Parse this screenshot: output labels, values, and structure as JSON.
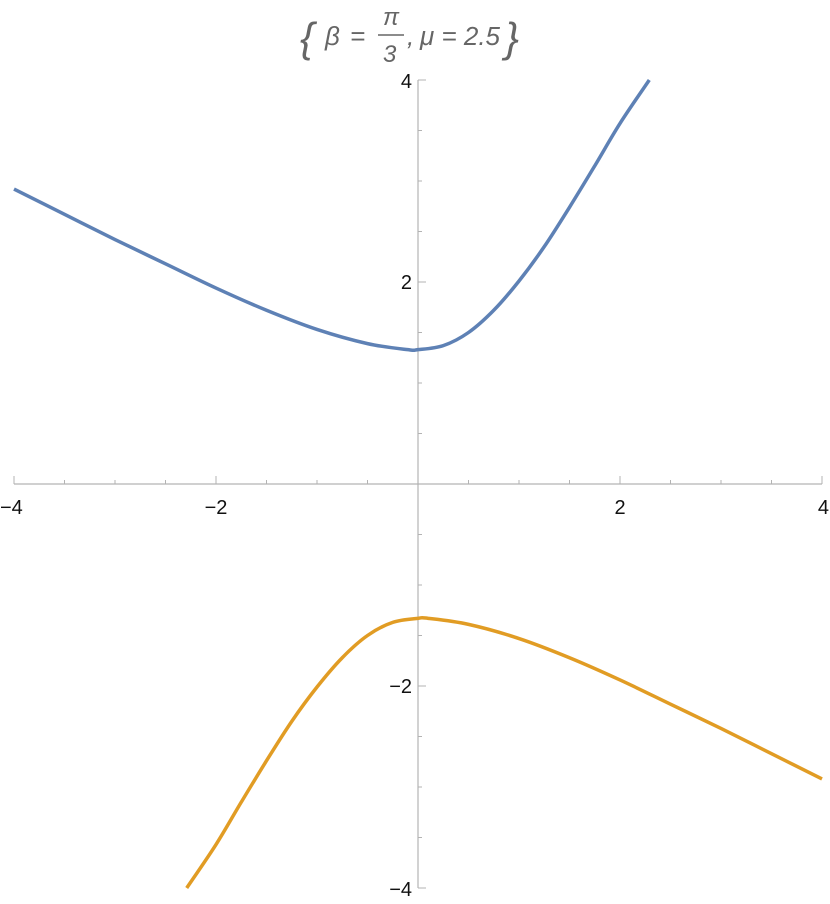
{
  "chart_data": {
    "type": "line",
    "title": {
      "open_brace": "{",
      "beta_symbol": "β",
      "equals": "=",
      "pi_symbol": "π",
      "denominator": "3",
      "separator": ",",
      "mu_label": "μ = 2.5",
      "close_brace": "}"
    },
    "xlabel": "",
    "ylabel": "",
    "xlim": [
      -4,
      4
    ],
    "ylim": [
      -4,
      4
    ],
    "x_ticks": [
      {
        "value": -4,
        "label": "−4"
      },
      {
        "value": -2,
        "label": "−2"
      },
      {
        "value": 2,
        "label": "2"
      },
      {
        "value": 4,
        "label": "4"
      }
    ],
    "y_ticks": [
      {
        "value": 4,
        "label": "4"
      },
      {
        "value": 2,
        "label": "2"
      },
      {
        "value": -2,
        "label": "−2"
      },
      {
        "value": -4,
        "label": "−4"
      }
    ],
    "grid": false,
    "axis_color": "#b3b3b3",
    "series": [
      {
        "color": "#5e81b5",
        "x": [
          -4.0,
          -3.5,
          -3.0,
          -2.5,
          -2.0,
          -1.5,
          -1.0,
          -0.5,
          -0.1,
          0.0,
          0.25,
          0.5,
          0.75,
          1.0,
          1.25,
          1.5,
          1.75,
          2.0,
          2.29
        ],
        "y": [
          2.92,
          2.67,
          2.42,
          2.18,
          1.94,
          1.72,
          1.53,
          1.39,
          1.33,
          1.33,
          1.37,
          1.5,
          1.72,
          2.01,
          2.35,
          2.74,
          3.15,
          3.57,
          4.0
        ]
      },
      {
        "color": "#e19c24",
        "x": [
          -2.29,
          -2.0,
          -1.75,
          -1.5,
          -1.25,
          -1.0,
          -0.75,
          -0.5,
          -0.25,
          0.0,
          0.1,
          0.5,
          1.0,
          1.5,
          2.0,
          2.5,
          3.0,
          3.5,
          4.0
        ],
        "y": [
          -4.0,
          -3.57,
          -3.15,
          -2.74,
          -2.35,
          -2.01,
          -1.72,
          -1.5,
          -1.37,
          -1.33,
          -1.33,
          -1.39,
          -1.53,
          -1.72,
          -1.94,
          -2.18,
          -2.42,
          -2.67,
          -2.92
        ]
      }
    ]
  }
}
